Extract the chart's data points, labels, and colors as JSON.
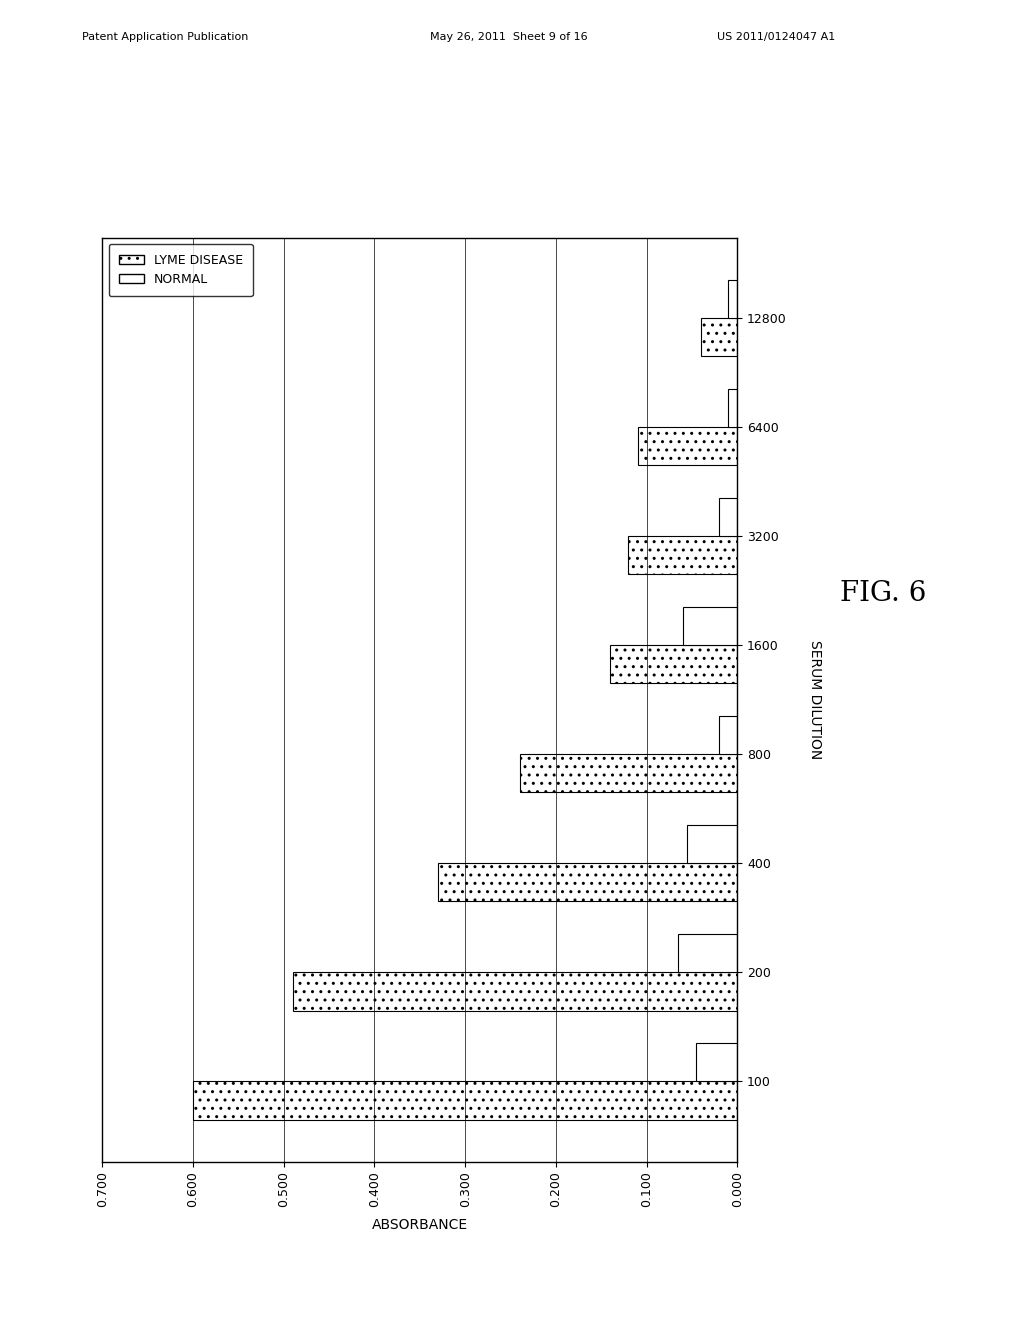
{
  "title": "FIG. 6",
  "xlabel": "ABSORBANCE",
  "ylabel": "SERUM DILUTION",
  "categories": [
    100,
    200,
    400,
    800,
    1600,
    3200,
    6400,
    12800
  ],
  "lyme_disease": [
    0.6,
    0.49,
    0.33,
    0.24,
    0.14,
    0.12,
    0.11,
    0.04
  ],
  "normal": [
    0.045,
    0.065,
    0.055,
    0.02,
    0.06,
    0.02,
    0.01,
    0.01
  ],
  "xlim": [
    0.0,
    0.7
  ],
  "xticks": [
    0.0,
    0.1,
    0.2,
    0.3,
    0.4,
    0.5,
    0.6,
    0.7
  ],
  "bar_width": 0.35,
  "lyme_hatch": "..",
  "normal_hatch": "",
  "lyme_color": "white",
  "normal_color": "white",
  "lyme_edgecolor": "black",
  "normal_edgecolor": "black",
  "background_color": "white",
  "legend_labels": [
    "LYME DISEASE",
    "NORMAL"
  ],
  "fig_width": 10.24,
  "fig_height": 13.2,
  "dpi": 100
}
